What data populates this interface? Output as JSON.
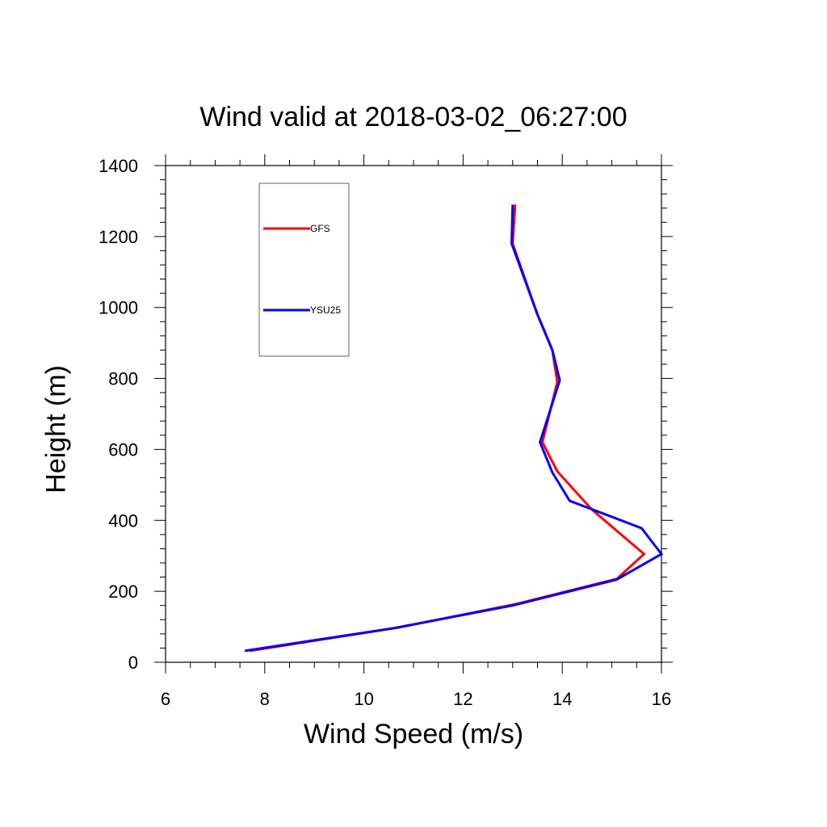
{
  "chart_data": {
    "type": "line",
    "title": "Wind valid at 2018-03-02_06:27:00",
    "xlabel": "Wind Speed (m/s)",
    "ylabel": "Height (m)",
    "xlim": [
      6,
      16
    ],
    "ylim": [
      0,
      1400
    ],
    "x_ticks": [
      6,
      8,
      10,
      12,
      14,
      16
    ],
    "y_ticks": [
      0,
      200,
      400,
      600,
      800,
      1000,
      1200,
      1400
    ],
    "legend_position": "top-left",
    "series": [
      {
        "name": "GFS",
        "color": "#ff0000",
        "points": [
          [
            7.7,
            32
          ],
          [
            10.7,
            98
          ],
          [
            13.1,
            165
          ],
          [
            15.1,
            235
          ],
          [
            15.65,
            305
          ],
          [
            14.6,
            430
          ],
          [
            13.9,
            538
          ],
          [
            13.6,
            620
          ],
          [
            13.9,
            790
          ],
          [
            13.8,
            880
          ],
          [
            13.5,
            980
          ],
          [
            13.0,
            1180
          ],
          [
            13.05,
            1290
          ]
        ]
      },
      {
        "name": "YSU25",
        "color": "#0000ff",
        "points": [
          [
            7.6,
            32
          ],
          [
            10.6,
            96
          ],
          [
            13.0,
            160
          ],
          [
            15.1,
            233
          ],
          [
            16.0,
            305
          ],
          [
            15.6,
            378
          ],
          [
            14.15,
            455
          ],
          [
            13.8,
            535
          ],
          [
            13.55,
            620
          ],
          [
            13.95,
            795
          ],
          [
            13.8,
            880
          ],
          [
            13.5,
            980
          ],
          [
            12.98,
            1180
          ],
          [
            13.0,
            1290
          ]
        ]
      }
    ]
  }
}
